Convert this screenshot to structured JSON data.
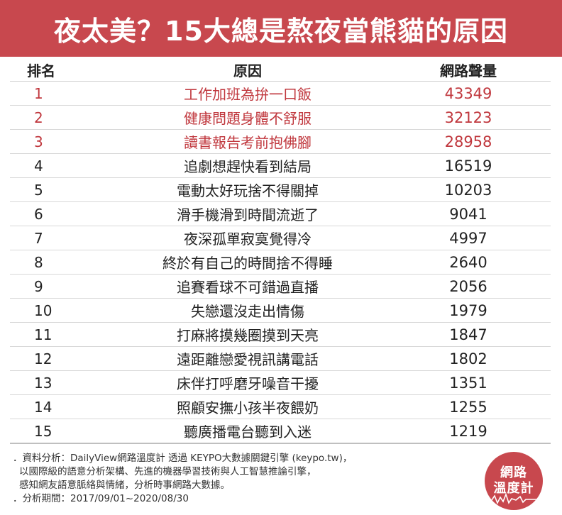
{
  "title": "夜太美？15大總是熬夜當熊貓的原因",
  "table": {
    "headers": {
      "rank": "排名",
      "reason": "原因",
      "volume": "網路聲量"
    },
    "rows": [
      {
        "rank": "1",
        "reason": "工作加班為拚一口飯",
        "volume": "43349"
      },
      {
        "rank": "2",
        "reason": "健康問題身體不舒服",
        "volume": "32123"
      },
      {
        "rank": "3",
        "reason": "讀書報告考前抱佛腳",
        "volume": "28958"
      },
      {
        "rank": "4",
        "reason": "追劇想趕快看到結局",
        "volume": "16519"
      },
      {
        "rank": "5",
        "reason": "電動太好玩捨不得關掉",
        "volume": "10203"
      },
      {
        "rank": "6",
        "reason": "滑手機滑到時間流逝了",
        "volume": "9041"
      },
      {
        "rank": "7",
        "reason": "夜深孤單寂寞覺得冷",
        "volume": "4997"
      },
      {
        "rank": "8",
        "reason": "終於有自己的時間捨不得睡",
        "volume": "2640"
      },
      {
        "rank": "9",
        "reason": "追賽看球不可錯過直播",
        "volume": "2056"
      },
      {
        "rank": "10",
        "reason": "失戀還沒走出情傷",
        "volume": "1979"
      },
      {
        "rank": "11",
        "reason": "打麻將摸幾圈摸到天亮",
        "volume": "1847"
      },
      {
        "rank": "12",
        "reason": "遠距離戀愛視訊講電話",
        "volume": "1802"
      },
      {
        "rank": "13",
        "reason": "床伴打呼磨牙噪音干擾",
        "volume": "1351"
      },
      {
        "rank": "14",
        "reason": "照顧安撫小孩半夜餵奶",
        "volume": "1255"
      },
      {
        "rank": "15",
        "reason": "聽廣播電台聽到入迷",
        "volume": "1219"
      }
    ]
  },
  "notes": {
    "line1": "．資料分析：DailyView網路溫度計 透過 KEYPO大數據關鍵引擎 (keypo.tw)，",
    "line2": "以國際級的語意分析架構、先進的機器學習技術與人工智慧推論引擎，",
    "line3": "感知網友語意脈絡與情緒，分析時事網路大數據。",
    "line4": "．分析期間：2017/09/01~2020/08/30"
  },
  "logo": {
    "line1": "網路",
    "line2": "溫度計"
  },
  "colors": {
    "brand_red": "#c8484e",
    "top3_text": "#c0373d",
    "body_text": "#222222"
  }
}
